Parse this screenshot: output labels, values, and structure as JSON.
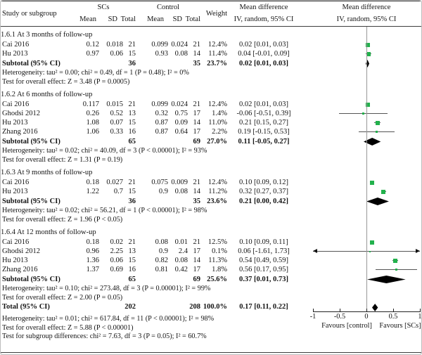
{
  "figure": {
    "header": {
      "study_col": "Study or subgroup",
      "group1": "SCs",
      "group2": "Control",
      "stat_cols": [
        "Mean",
        "SD",
        "Total",
        "Mean",
        "SD",
        "Total"
      ],
      "weight_col": "Weight",
      "effect_col_line1": "Mean difference",
      "effect_col_line2": "IV, random, 95% CI",
      "plot_col_line1": "Mean difference",
      "plot_col_line2": "IV, random, 95% CI"
    }
  },
  "colors": {
    "study_marker_green": "#22b14c",
    "summary_diamond_black": "#000000",
    "ci_line_gray": "#555555",
    "zero_line_gray": "#999999",
    "text_black": "#141414"
  },
  "chart_data": {
    "type": "forest",
    "effect_measure": "Mean difference, IV, random, 95% CI",
    "axis": {
      "min": -1,
      "max": 1,
      "ticks": [
        -1,
        -0.5,
        0,
        0.5,
        1
      ],
      "tick_labels": [
        "-1",
        "-0.5",
        "0",
        "0.5",
        "1"
      ],
      "left_label": "Favours [control]",
      "right_label": "Favours [SCs]"
    },
    "sections": [
      {
        "title": "1.6.1 At 3 months of follow-up",
        "studies": [
          {
            "name": "Cai 2016",
            "sc_mean": "0.12",
            "sc_sd": "0.018",
            "sc_total": "21",
            "c_mean": "0.099",
            "c_sd": "0.024",
            "c_total": "21",
            "weight": "12.4%",
            "ci_text": "0.02 [0.01, 0.03]",
            "est": 0.02,
            "lo": 0.01,
            "hi": 0.03
          },
          {
            "name": "Hu 2013",
            "sc_mean": "0.97",
            "sc_sd": "0.06",
            "sc_total": "15",
            "c_mean": "0.93",
            "c_sd": "0.08",
            "c_total": "14",
            "weight": "11.4%",
            "ci_text": "0.04 [-0.01, 0.09]",
            "est": 0.04,
            "lo": -0.01,
            "hi": 0.09
          }
        ],
        "subtotal": {
          "label": "Subtotal (95% CI)",
          "sc_total": "36",
          "c_total": "35",
          "weight": "23.7%",
          "ci_text": "0.02 [0.01, 0.03]",
          "est": 0.02,
          "lo": 0.01,
          "hi": 0.03
        },
        "notes": [
          "Heterogeneity: tau² = 0.00; chi² = 0.49, df = 1 (P = 0.48); I² = 0%",
          "Test for overall effect: Z = 3.48 (P = 0.0005)"
        ]
      },
      {
        "title": "1.6.2 At 6 months of follow-up",
        "studies": [
          {
            "name": "Cai 2016",
            "sc_mean": "0.117",
            "sc_sd": "0.015",
            "sc_total": "21",
            "c_mean": "0.099",
            "c_sd": "0.024",
            "c_total": "21",
            "weight": "12.4%",
            "ci_text": "0.02 [0.01, 0.03]",
            "est": 0.02,
            "lo": 0.01,
            "hi": 0.03
          },
          {
            "name": "Ghodsi 2012",
            "sc_mean": "0.26",
            "sc_sd": "0.52",
            "sc_total": "13",
            "c_mean": "0.32",
            "c_sd": "0.75",
            "c_total": "17",
            "weight": "1.4%",
            "ci_text": "-0.06 [-0.51, 0.39]",
            "est": -0.06,
            "lo": -0.51,
            "hi": 0.39
          },
          {
            "name": "Hu 2013",
            "sc_mean": "1.08",
            "sc_sd": "0.07",
            "sc_total": "15",
            "c_mean": "0.87",
            "c_sd": "0.09",
            "c_total": "14",
            "weight": "11.0%",
            "ci_text": "0.21 [0.15, 0.27]",
            "est": 0.21,
            "lo": 0.15,
            "hi": 0.27
          },
          {
            "name": "Zhang 2016",
            "sc_mean": "1.06",
            "sc_sd": "0.33",
            "sc_total": "16",
            "c_mean": "0.87",
            "c_sd": "0.64",
            "c_total": "17",
            "weight": "2.2%",
            "ci_text": "0.19 [-0.15, 0.53]",
            "est": 0.19,
            "lo": -0.15,
            "hi": 0.53
          }
        ],
        "subtotal": {
          "label": "Subtotal (95% CI)",
          "sc_total": "65",
          "c_total": "69",
          "weight": "27.0%",
          "ci_text": "0.11 [-0.05, 0.27]",
          "est": 0.11,
          "lo": -0.05,
          "hi": 0.27
        },
        "notes": [
          "Heterogeneity: tau² = 0.02; chi² = 40.09, df = 3 (P < 0.00001); I² = 93%",
          "Test for overall effect: Z = 1.31 (P = 0.19)"
        ]
      },
      {
        "title": "1.6.3 At 9 months of follow-up",
        "studies": [
          {
            "name": "Cai 2016",
            "sc_mean": "0.18",
            "sc_sd": "0.027",
            "sc_total": "21",
            "c_mean": "0.075",
            "c_sd": "0.009",
            "c_total": "21",
            "weight": "12.4%",
            "ci_text": "0.10 [0.09, 0.12]",
            "est": 0.1,
            "lo": 0.09,
            "hi": 0.12
          },
          {
            "name": "Hu 2013",
            "sc_mean": "1.22",
            "sc_sd": "0.7",
            "sc_total": "15",
            "c_mean": "0.9",
            "c_sd": "0.08",
            "c_total": "14",
            "weight": "11.2%",
            "ci_text": "0.32 [0.27, 0.37]",
            "est": 0.32,
            "lo": 0.27,
            "hi": 0.37
          }
        ],
        "subtotal": {
          "label": "Subtotal (95% CI)",
          "sc_total": "36",
          "c_total": "35",
          "weight": "23.6%",
          "ci_text": "0.21 [0.00, 0.42]",
          "est": 0.21,
          "lo": 0.0,
          "hi": 0.42
        },
        "notes": [
          "Heterogeneity: tau² = 0.02; chi² = 56.21, df = 1 (P < 0.00001); I² = 98%",
          "Test for overall effect: Z = 1.96 (P < 0.05)"
        ]
      },
      {
        "title": "1.6.4 At 12 months of follow-up",
        "studies": [
          {
            "name": "Cai 2016",
            "sc_mean": "0.18",
            "sc_sd": "0.02",
            "sc_total": "21",
            "c_mean": "0.08",
            "c_sd": "0.01",
            "c_total": "21",
            "weight": "12.5%",
            "ci_text": "0.10 [0.09, 0.11]",
            "est": 0.1,
            "lo": 0.09,
            "hi": 0.11
          },
          {
            "name": "Ghodsi 2012",
            "sc_mean": "0.96",
            "sc_sd": "2.25",
            "sc_total": "13",
            "c_mean": "0.9",
            "c_sd": "2.4",
            "c_total": "17",
            "weight": "0.1%",
            "ci_text": "0.06 [-1.61, 1.73]",
            "est": 0.06,
            "lo": -1.61,
            "hi": 1.73
          },
          {
            "name": "Hu 2013",
            "sc_mean": "1.36",
            "sc_sd": "0.06",
            "sc_total": "15",
            "c_mean": "0.82",
            "c_sd": "0.08",
            "c_total": "14",
            "weight": "11.3%",
            "ci_text": "0.54 [0.49, 0.59]",
            "est": 0.54,
            "lo": 0.49,
            "hi": 0.59
          },
          {
            "name": "Zhang 2016",
            "sc_mean": "1.37",
            "sc_sd": "0.69",
            "sc_total": "16",
            "c_mean": "0.81",
            "c_sd": "0.42",
            "c_total": "17",
            "weight": "1.8%",
            "ci_text": "0.56 [0.17, 0.95]",
            "est": 0.56,
            "lo": 0.17,
            "hi": 0.95
          }
        ],
        "subtotal": {
          "label": "Subtotal (95% CI)",
          "sc_total": "65",
          "c_total": "69",
          "weight": "25.6%",
          "ci_text": "0.37 [0.01, 0.73]",
          "est": 0.37,
          "lo": 0.01,
          "hi": 0.73
        },
        "notes": [
          "Heterogeneity: tau² = 0.10; chi² = 273.48, df = 3 (P = 0.00001); I² = 99%",
          "Test for overall effect: Z = 2.00 (P = 0.05)"
        ]
      }
    ],
    "total": {
      "label": "Total (95% CI)",
      "sc_total": "202",
      "c_total": "208",
      "weight": "100.0%",
      "ci_text": "0.17 [0.11, 0.22]",
      "est": 0.17,
      "lo": 0.11,
      "hi": 0.22
    },
    "footer_notes": [
      "Heterogeneity: tau² = 0.01; chi² = 617.84, df = 11 (P < 0.00001); I² = 98%",
      "Test for overall effect: Z = 5.88 (P < 0.00001)",
      "Test for subgroup differences: chi² = 7.63, df = 3 (P = 0.05); I² = 60.7%"
    ]
  }
}
